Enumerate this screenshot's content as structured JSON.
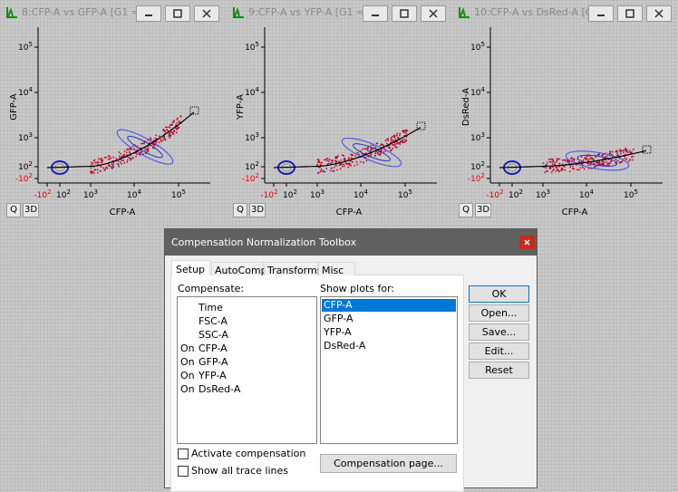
{
  "windows": [
    {
      "title": "8:CFP-A vs GFP-A [G1 =...",
      "x_label": "CFP-A",
      "y_label": "GFP-A",
      "y_ticks": [
        {
          "base": "10",
          "exp": "5"
        },
        {
          "base": "10",
          "exp": "4"
        },
        {
          "base": "10",
          "exp": "3"
        },
        {
          "base": "10",
          "exp": "2"
        },
        {
          "base": "-10",
          "exp": "2"
        }
      ],
      "x_ticks": [
        {
          "base": "-10",
          "exp": "2"
        },
        {
          "base": "10",
          "exp": "2"
        },
        {
          "base": "10",
          "exp": "3"
        },
        {
          "base": "10",
          "exp": "4"
        },
        {
          "base": "10",
          "exp": "5"
        }
      ],
      "buttons": [
        "Q",
        "3D"
      ]
    },
    {
      "title": "9:CFP-A vs YFP-A [G1 =...",
      "x_label": "CFP-A",
      "y_label": "YFP-A",
      "y_ticks": [
        {
          "base": "10",
          "exp": "5"
        },
        {
          "base": "10",
          "exp": "4"
        },
        {
          "base": "10",
          "exp": "3"
        },
        {
          "base": "10",
          "exp": "2"
        },
        {
          "base": "-10",
          "exp": "2"
        }
      ],
      "x_ticks": [
        {
          "base": "-10",
          "exp": "2"
        },
        {
          "base": "10",
          "exp": "2"
        },
        {
          "base": "10",
          "exp": "3"
        },
        {
          "base": "10",
          "exp": "4"
        },
        {
          "base": "10",
          "exp": "5"
        }
      ],
      "buttons": [
        "Q",
        "3D"
      ]
    },
    {
      "title": "10:CFP-A vs DsRed-A [G...",
      "x_label": "CFP-A",
      "y_label": "DsRed-A",
      "y_ticks": [
        {
          "base": "10",
          "exp": "5"
        },
        {
          "base": "10",
          "exp": "4"
        },
        {
          "base": "10",
          "exp": "3"
        },
        {
          "base": "10",
          "exp": "2"
        },
        {
          "base": "-10",
          "exp": "2"
        }
      ],
      "x_ticks": [
        {
          "base": "-10",
          "exp": "2"
        },
        {
          "base": "10",
          "exp": "2"
        },
        {
          "base": "10",
          "exp": "3"
        },
        {
          "base": "10",
          "exp": "4"
        },
        {
          "base": "10",
          "exp": "5"
        }
      ],
      "buttons": [
        "Q",
        "3D"
      ]
    }
  ],
  "dialog": {
    "title": "Compensation Normalization Toolbox",
    "tabs": [
      "Setup",
      "AutoComp",
      "Transforms",
      "Misc"
    ],
    "compensate_label": "Compensate:",
    "compensate_rows": [
      {
        "name": "Time"
      },
      {
        "name": "FSC-A"
      },
      {
        "name": "SSC-A"
      },
      {
        "state": "On",
        "name": "CFP-A"
      },
      {
        "state": "On",
        "name": "GFP-A"
      },
      {
        "state": "On",
        "name": "YFP-A"
      },
      {
        "state": "On",
        "name": "DsRed-A"
      }
    ],
    "show_plots_label": "Show plots for:",
    "show_plots_items": [
      "CFP-A",
      "GFP-A",
      "YFP-A",
      "DsRed-A"
    ],
    "buttons": [
      "OK",
      "Open...",
      "Save...",
      "Edit...",
      "Reset"
    ],
    "checkboxes": [
      "Activate compensation",
      "Show all trace lines"
    ],
    "page_button": "Compensation page..."
  }
}
